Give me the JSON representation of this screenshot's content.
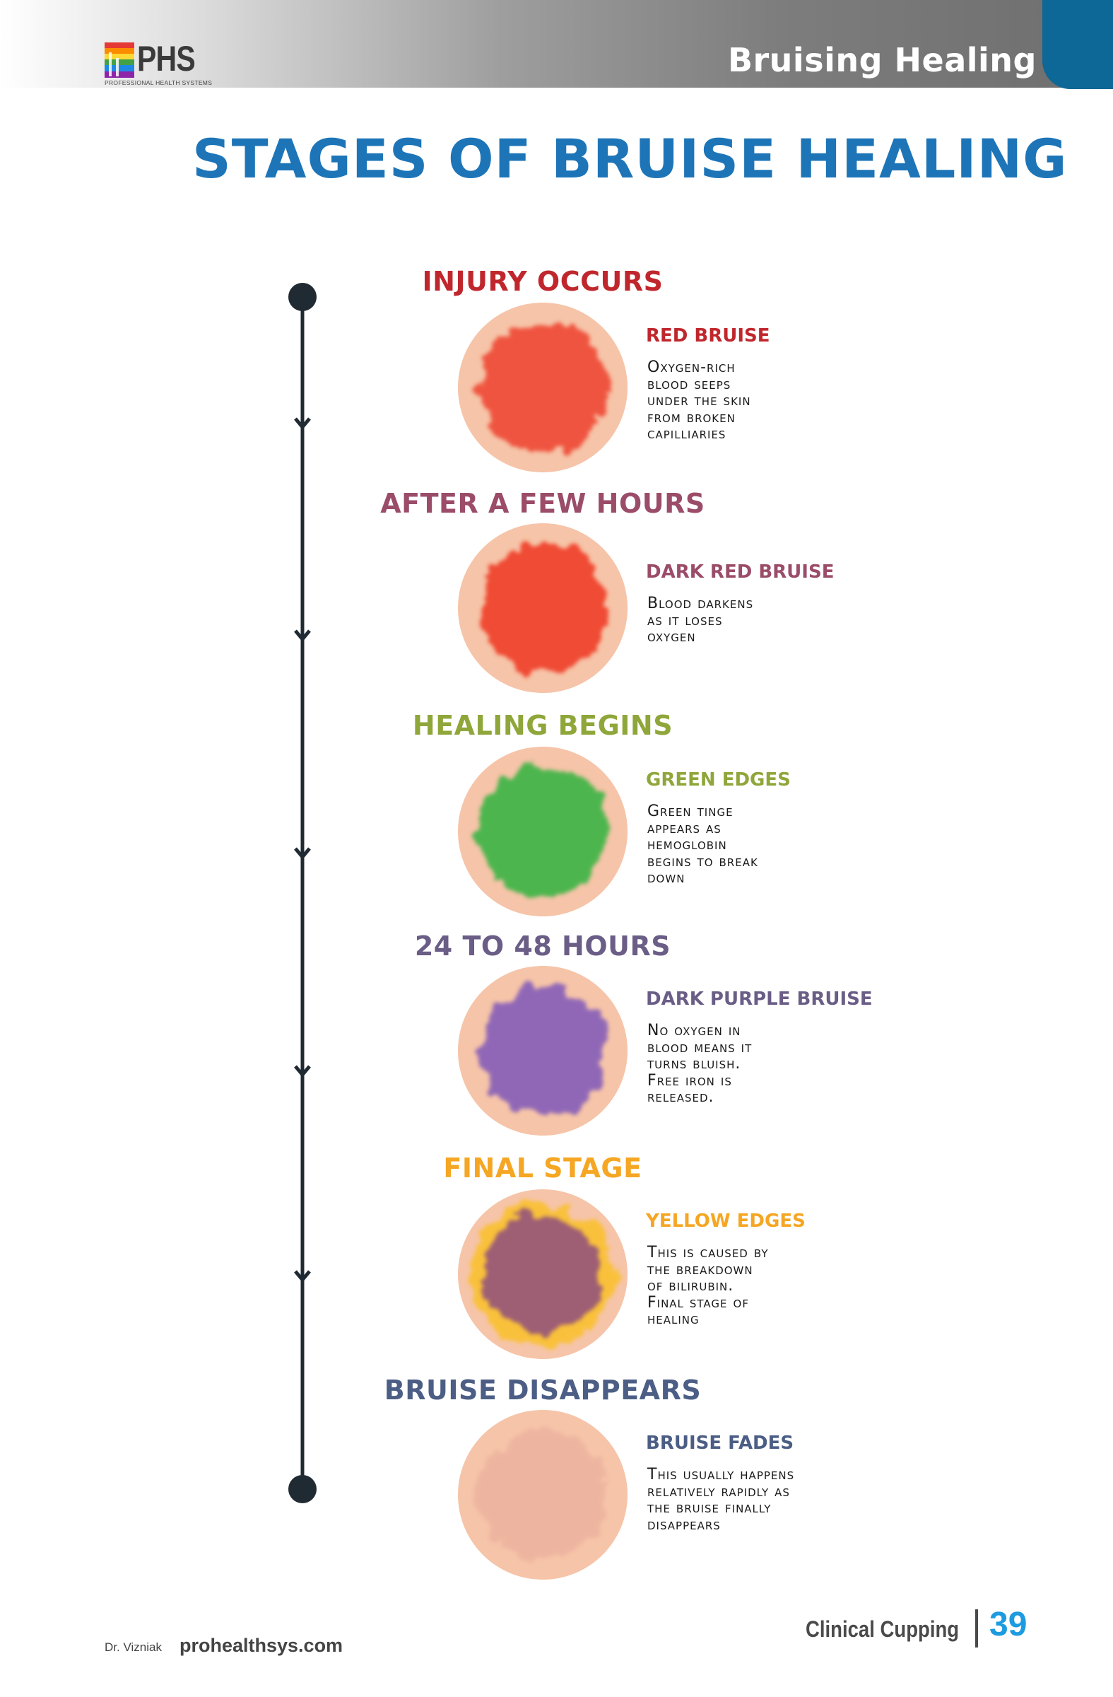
{
  "header": {
    "logo_text": "PHS",
    "logo_subtitle": "PROFESSIONAL HEALTH SYSTEMS",
    "section_title": "Bruising Healing"
  },
  "page_title": "STAGES OF BRUISE HEALING",
  "stages": [
    {
      "heading": "INJURY OCCURS",
      "heading_color": "#c0272d",
      "subheading": "RED BRUISE",
      "subheading_color": "#c0272d",
      "description": "Oxygen-rich\nblood seeps\nunder the skin\nfrom broken\ncapilliaries",
      "bruise_color": "#ef4f3b",
      "edge_color": "#f6c4a8"
    },
    {
      "heading": "AFTER A FEW HOURS",
      "heading_color": "#9b4c68",
      "subheading": "DARK RED BRUISE",
      "subheading_color": "#9b4c68",
      "description": "Blood darkens\nas it loses\noxygen",
      "bruise_color": "#f0452d",
      "edge_color": "#f6c4a8"
    },
    {
      "heading": "HEALING BEGINS",
      "heading_color": "#8fa63a",
      "subheading": "GREEN EDGES",
      "subheading_color": "#8fa63a",
      "description": "Green tinge\nappears as\nhemoglobin\nbegins to break\ndown",
      "bruise_color": "#44b549",
      "edge_color": "#f6c4a8"
    },
    {
      "heading": "24 TO 48 HOURS",
      "heading_color": "#6a5d86",
      "subheading": "DARK PURPLE BRUISE",
      "subheading_color": "#6a5d86",
      "description": "No oxygen in\nblood means it\nturns bluish.\nFree iron is\nreleased.",
      "bruise_color": "#8b63b8",
      "edge_color": "#f6c4a8"
    },
    {
      "heading": "FINAL STAGE",
      "heading_color": "#f5a623",
      "subheading": "YELLOW EDGES",
      "subheading_color": "#f5a623",
      "description": "This is caused by\nthe breakdown\nof bilirubin.\nFinal stage of\nhealing",
      "bruise_color": "#9a5a78",
      "edge_color": "#f9c13a"
    },
    {
      "heading": "BRUISE DISAPPEARS",
      "heading_color": "#4c5e85",
      "subheading": "BRUISE FADES",
      "subheading_color": "#4c5e85",
      "description": "This usually happens\nrelatively rapidly as\nthe bruise finally\ndisappears",
      "bruise_color": "#e7a99a",
      "edge_color": "#f6c4a8"
    }
  ],
  "footer": {
    "author": "Dr. Vizniak",
    "website": "prohealthsys.com",
    "book_title": "Clinical Cupping",
    "page_number": "39"
  }
}
